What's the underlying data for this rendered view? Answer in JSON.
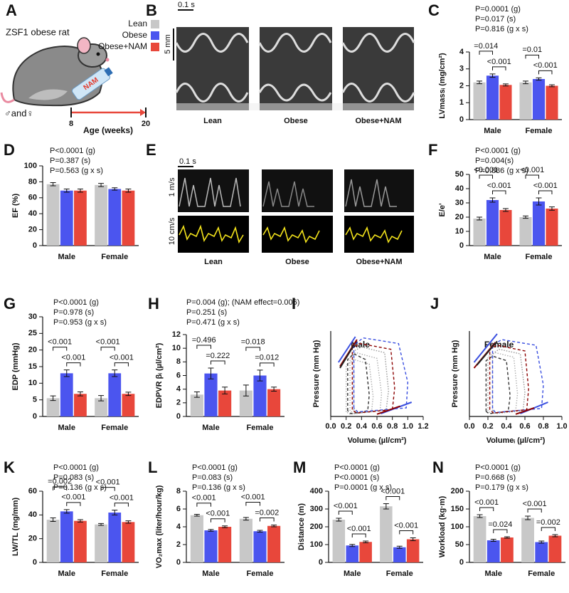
{
  "figure": {
    "A": {
      "panel": "A",
      "title": "ZSF1 obese rat",
      "bottle": "NAM",
      "sex": "♂and♀",
      "timeline": {
        "ticks": [
          8,
          20
        ],
        "label": "Age (weeks)"
      }
    },
    "B": {
      "panel": "B",
      "scale_x": "0.1 s",
      "scale_y": "5 mm",
      "labels": [
        "Lean",
        "Obese",
        "Obese+NAM"
      ]
    },
    "E": {
      "panel": "E",
      "scale_x": "0.1 s",
      "scale_y": [
        "1 m/s",
        "10 cm/s"
      ],
      "labels": [
        "Lean",
        "Obese",
        "Obese+NAM"
      ]
    }
  },
  "chart_data": [
    {
      "type": "bar",
      "panel": "C",
      "ylabel": "LVmassᵢ (mg/cm²)",
      "stats": [
        "P=0.0001 (g)",
        "P=0.017 (s)",
        "P=0.816 (g x s)"
      ],
      "categories": [
        "Male",
        "Female"
      ],
      "series": [
        {
          "name": "Lean",
          "color": "#c8c8c8",
          "values": [
            2.2,
            2.2
          ],
          "errors": [
            0.08,
            0.08
          ]
        },
        {
          "name": "Obese",
          "color": "#4b55ef",
          "values": [
            2.6,
            2.4
          ],
          "errors": [
            0.1,
            0.07
          ]
        },
        {
          "name": "Obese+NAM",
          "color": "#e8473b",
          "values": [
            2.05,
            2.0
          ],
          "errors": [
            0.06,
            0.06
          ]
        }
      ],
      "comparisons": [
        [
          "=0.014",
          "<0.001"
        ],
        [
          "=0.01",
          "<0.001"
        ]
      ],
      "ylim": [
        0,
        4
      ],
      "yticks": [
        0,
        1,
        2,
        3,
        4
      ]
    },
    {
      "type": "bar",
      "panel": "D",
      "ylabel": "EF (%)",
      "stats": [
        "P<0.0001 (g)",
        "P=0.387 (s)",
        "P=0.563 (g x s)"
      ],
      "categories": [
        "Male",
        "Female"
      ],
      "series": [
        {
          "color": "#c8c8c8",
          "values": [
            77,
            76
          ],
          "errors": [
            2,
            2
          ]
        },
        {
          "color": "#4b55ef",
          "values": [
            69,
            71
          ],
          "errors": [
            2,
            1.5
          ]
        },
        {
          "color": "#e8473b",
          "values": [
            69,
            69
          ],
          "errors": [
            2,
            2
          ]
        }
      ],
      "comparisons": [
        [],
        []
      ],
      "ylim": [
        0,
        100
      ],
      "yticks": [
        0,
        20,
        40,
        60,
        80,
        100
      ]
    },
    {
      "type": "bar",
      "panel": "F",
      "ylabel": "E/e'",
      "stats": [
        "P<0.0001 (g)",
        "P=0.004(s)",
        "P=0.886 (g x s)"
      ],
      "categories": [
        "Male",
        "Female"
      ],
      "series": [
        {
          "color": "#c8c8c8",
          "values": [
            19,
            20
          ],
          "errors": [
            1,
            0.8
          ]
        },
        {
          "color": "#4b55ef",
          "values": [
            32,
            31
          ],
          "errors": [
            1.5,
            2.5
          ]
        },
        {
          "color": "#e8473b",
          "values": [
            25,
            26
          ],
          "errors": [
            1,
            1.2
          ]
        }
      ],
      "comparisons": [
        [
          "<0.001",
          "<0.001"
        ],
        [
          "<0.001",
          "<0.001"
        ]
      ],
      "ylim": [
        0,
        50
      ],
      "yticks": [
        0,
        10,
        20,
        30,
        40,
        50
      ]
    },
    {
      "type": "bar",
      "panel": "G",
      "ylabel": "EDP (mmHg)",
      "stats": [
        "P<0.0001 (g)",
        "P=0.978 (s)",
        "P=0.953 (g x s)"
      ],
      "categories": [
        "Male",
        "Female"
      ],
      "series": [
        {
          "color": "#c8c8c8",
          "values": [
            5.5,
            5.5
          ],
          "errors": [
            0.7,
            0.8
          ]
        },
        {
          "color": "#4b55ef",
          "values": [
            13,
            13
          ],
          "errors": [
            1,
            1
          ]
        },
        {
          "color": "#e8473b",
          "values": [
            6.8,
            6.8
          ],
          "errors": [
            0.6,
            0.5
          ]
        }
      ],
      "comparisons": [
        [
          "<0.001",
          "<0.001"
        ],
        [
          "<0.001",
          "<0.001"
        ]
      ],
      "ylim": [
        0,
        30
      ],
      "yticks": [
        0,
        5,
        10,
        15,
        20,
        25,
        30
      ]
    },
    {
      "type": "bar",
      "panel": "H",
      "ylabel": "EDPVR βᵢ (µl/cm²)",
      "stats": [
        "P=0.004 (g); (NAM effect=0.006)",
        "P=0.251 (s)",
        "P=0.471 (g x s)"
      ],
      "categories": [
        "Male",
        "Female"
      ],
      "series": [
        {
          "color": "#c8c8c8",
          "values": [
            3.2,
            3.8
          ],
          "errors": [
            0.4,
            0.8
          ]
        },
        {
          "color": "#4b55ef",
          "values": [
            6.3,
            6.0
          ],
          "errors": [
            0.8,
            0.8
          ]
        },
        {
          "color": "#e8473b",
          "values": [
            3.8,
            4.0
          ],
          "errors": [
            0.5,
            0.3
          ]
        }
      ],
      "comparisons": [
        [
          "=0.496",
          "=0.222"
        ],
        [
          "=0.018",
          "=0.012"
        ]
      ],
      "ylim": [
        0,
        12
      ],
      "yticks": [
        0,
        2,
        4,
        6,
        8,
        10,
        12
      ]
    },
    {
      "type": "line",
      "panel": "I",
      "title": "Male",
      "xlabel": "Volumeᵢ (µl/cm²)",
      "ylabel": "Pressure (mm Hg)",
      "xlim": [
        0,
        1.2
      ],
      "xticks": [
        {
          "value": 0,
          "label": "0.0"
        },
        0.2,
        0.4,
        0.6,
        0.8,
        {
          "value": 1,
          "label": "1.0"
        },
        1.2
      ],
      "ylim": [
        0,
        150
      ],
      "series": [
        {
          "color": "#b0b0b0",
          "style": "dotted",
          "x": [
            0.25,
            0.25,
            0.33,
            0.6,
            0.66,
            0.64,
            0.3,
            0.25
          ],
          "y": [
            10,
            105,
            112,
            102,
            40,
            10,
            5,
            10
          ]
        },
        {
          "color": "#b0b0b0",
          "style": "dotted",
          "x": [
            0.2,
            0.2,
            0.3,
            0.5,
            0.55,
            0.53,
            0.25,
            0.2
          ],
          "y": [
            8,
            90,
            100,
            92,
            35,
            8,
            4,
            8
          ]
        },
        {
          "color": "#999999",
          "style": "dotted",
          "x": [
            0.3,
            0.3,
            0.4,
            0.7,
            0.75,
            0.72,
            0.35,
            0.3
          ],
          "y": [
            12,
            115,
            122,
            112,
            45,
            12,
            6,
            12
          ]
        },
        {
          "color": "#333333",
          "style": "dashed",
          "x": [
            0.22,
            0.22,
            0.3,
            0.45,
            0.5,
            0.48,
            0.26,
            0.22
          ],
          "y": [
            10,
            100,
            110,
            100,
            38,
            10,
            5,
            10
          ]
        },
        {
          "color": "#3a4fe0",
          "style": "dashed",
          "x": [
            0.3,
            0.3,
            0.42,
            0.88,
            1.0,
            0.98,
            0.35,
            0.3
          ],
          "y": [
            15,
            125,
            138,
            128,
            60,
            15,
            8,
            15
          ]
        },
        {
          "color": "#8b0000",
          "style": "dashed",
          "x": [
            0.28,
            0.28,
            0.38,
            0.78,
            0.83,
            0.8,
            0.33,
            0.28
          ],
          "y": [
            12,
            120,
            128,
            118,
            50,
            12,
            6,
            12
          ]
        },
        {
          "color": "#3a4fe0",
          "style": "solid",
          "x": [
            0.1,
            0.32
          ],
          "y": [
            95,
            140
          ]
        },
        {
          "color": "#8b0000",
          "style": "solid",
          "x": [
            0.12,
            0.34
          ],
          "y": [
            88,
            135
          ]
        },
        {
          "color": "#222222",
          "style": "solid",
          "x": [
            0.12,
            0.3
          ],
          "y": [
            85,
            125
          ]
        },
        {
          "color": "#3a4fe0",
          "style": "solid",
          "x": [
            0.65,
            1.05
          ],
          "y": [
            5,
            25
          ]
        },
        {
          "color": "#8b0000",
          "style": "solid",
          "x": [
            0.6,
            0.9
          ],
          "y": [
            4,
            18
          ]
        }
      ]
    },
    {
      "type": "line",
      "panel": "J",
      "title": "Female",
      "xlabel": "Volumeᵢ (µl/cm²)",
      "ylabel": "Pressure (mm Hg)",
      "xlim": [
        0,
        1
      ],
      "xticks": [
        {
          "value": 0,
          "label": "0.0"
        },
        0.2,
        0.4,
        0.6,
        0.8,
        {
          "value": 1,
          "label": "1.0"
        }
      ],
      "ylim": [
        0,
        150
      ],
      "series": [
        {
          "color": "#b0b0b0",
          "style": "dotted",
          "x": [
            0.2,
            0.2,
            0.28,
            0.48,
            0.52,
            0.5,
            0.23,
            0.2
          ],
          "y": [
            10,
            105,
            112,
            104,
            40,
            10,
            5,
            10
          ]
        },
        {
          "color": "#999999",
          "style": "dotted",
          "x": [
            0.25,
            0.25,
            0.32,
            0.55,
            0.6,
            0.58,
            0.28,
            0.25
          ],
          "y": [
            10,
            110,
            118,
            110,
            42,
            10,
            5,
            10
          ]
        },
        {
          "color": "#333333",
          "style": "dashed",
          "x": [
            0.18,
            0.18,
            0.25,
            0.4,
            0.44,
            0.42,
            0.21,
            0.18
          ],
          "y": [
            9,
            98,
            106,
            98,
            36,
            9,
            5,
            9
          ]
        },
        {
          "color": "#3a4fe0",
          "style": "dashed",
          "x": [
            0.25,
            0.25,
            0.35,
            0.72,
            0.8,
            0.78,
            0.28,
            0.25
          ],
          "y": [
            14,
            125,
            135,
            125,
            55,
            14,
            7,
            14
          ]
        },
        {
          "color": "#8b0000",
          "style": "dashed",
          "x": [
            0.22,
            0.22,
            0.3,
            0.6,
            0.64,
            0.62,
            0.26,
            0.22
          ],
          "y": [
            12,
            118,
            125,
            115,
            48,
            12,
            6,
            12
          ]
        },
        {
          "color": "#3a4fe0",
          "style": "solid",
          "x": [
            0.05,
            0.3
          ],
          "y": [
            95,
            145
          ]
        },
        {
          "color": "#8b0000",
          "style": "solid",
          "x": [
            0.05,
            0.28
          ],
          "y": [
            85,
            130
          ]
        },
        {
          "color": "#222222",
          "style": "solid",
          "x": [
            0.08,
            0.3
          ],
          "y": [
            90,
            132
          ]
        },
        {
          "color": "#3a4fe0",
          "style": "solid",
          "x": [
            0.55,
            0.85
          ],
          "y": [
            5,
            25
          ]
        },
        {
          "color": "#8b0000",
          "style": "solid",
          "x": [
            0.5,
            0.7
          ],
          "y": [
            4,
            15
          ]
        }
      ]
    },
    {
      "type": "bar",
      "panel": "K",
      "ylabel": "LW/TL (mg/mm)",
      "stats": [
        "P<0.0001 (g)",
        "P=0.083 (s)",
        "P=0.136 (g x s)"
      ],
      "categories": [
        "Male",
        "Female"
      ],
      "series": [
        {
          "color": "#c8c8c8",
          "values": [
            36,
            32
          ],
          "errors": [
            1.5,
            0.8
          ]
        },
        {
          "color": "#4b55ef",
          "values": [
            43,
            42
          ],
          "errors": [
            1.5,
            2
          ]
        },
        {
          "color": "#e8473b",
          "values": [
            35,
            34
          ],
          "errors": [
            1,
            1
          ]
        }
      ],
      "comparisons": [
        [
          "=0.002",
          "<0.001"
        ],
        [
          "<0.001",
          "<0.001"
        ]
      ],
      "ylim": [
        0,
        60
      ],
      "yticks": [
        0,
        20,
        40,
        60
      ]
    },
    {
      "type": "bar",
      "panel": "L",
      "ylabel": "VO₂max (liter/hour/kg)",
      "stats": [
        "P<0.0001 (g)",
        "P=0.083 (s)",
        "P=0.136 (g x s)"
      ],
      "categories": [
        "Male",
        "Female"
      ],
      "series": [
        {
          "color": "#c8c8c8",
          "values": [
            5.3,
            4.9
          ],
          "errors": [
            0.1,
            0.15
          ]
        },
        {
          "color": "#4b55ef",
          "values": [
            3.6,
            3.5
          ],
          "errors": [
            0.1,
            0.1
          ]
        },
        {
          "color": "#e8473b",
          "values": [
            4.0,
            4.1
          ],
          "errors": [
            0.1,
            0.1
          ]
        }
      ],
      "comparisons": [
        [
          "<0.001",
          "<0.001"
        ],
        [
          "<0.001",
          "=0.002"
        ]
      ],
      "ylim": [
        0,
        8
      ],
      "yticks": [
        0,
        2,
        4,
        6,
        8
      ]
    },
    {
      "type": "bar",
      "panel": "M",
      "ylabel": "Distance (m)",
      "stats": [
        "P<0.0001 (g)",
        "P<0.0001 (s)",
        "P=0.0001 (g x s)"
      ],
      "categories": [
        "Male",
        "Female"
      ],
      "series": [
        {
          "color": "#c8c8c8",
          "values": [
            240,
            315
          ],
          "errors": [
            8,
            15
          ]
        },
        {
          "color": "#4b55ef",
          "values": [
            95,
            85
          ],
          "errors": [
            6,
            6
          ]
        },
        {
          "color": "#e8473b",
          "values": [
            115,
            130
          ],
          "errors": [
            5,
            8
          ]
        }
      ],
      "comparisons": [
        [
          "<0.001",
          "<0.001"
        ],
        [
          "<0.001",
          "<0.001"
        ]
      ],
      "ylim": [
        0,
        400
      ],
      "yticks": [
        0,
        100,
        200,
        300,
        400
      ]
    },
    {
      "type": "bar",
      "panel": "N",
      "ylabel": "Workload (kg·m)",
      "stats": [
        "P<0.0001 (g)",
        "P=0.668 (s)",
        "P=0.179 (g x s)"
      ],
      "categories": [
        "Male",
        "Female"
      ],
      "series": [
        {
          "color": "#c8c8c8",
          "values": [
            130,
            125
          ],
          "errors": [
            4,
            5
          ]
        },
        {
          "color": "#4b55ef",
          "values": [
            62,
            57
          ],
          "errors": [
            3,
            3
          ]
        },
        {
          "color": "#e8473b",
          "values": [
            70,
            75
          ],
          "errors": [
            2,
            3
          ]
        }
      ],
      "comparisons": [
        [
          "<0.001",
          "=0.024"
        ],
        [
          "<0.001",
          "=0.002"
        ]
      ],
      "ylim": [
        0,
        200
      ],
      "yticks": [
        0,
        50,
        100,
        150,
        200
      ]
    }
  ]
}
